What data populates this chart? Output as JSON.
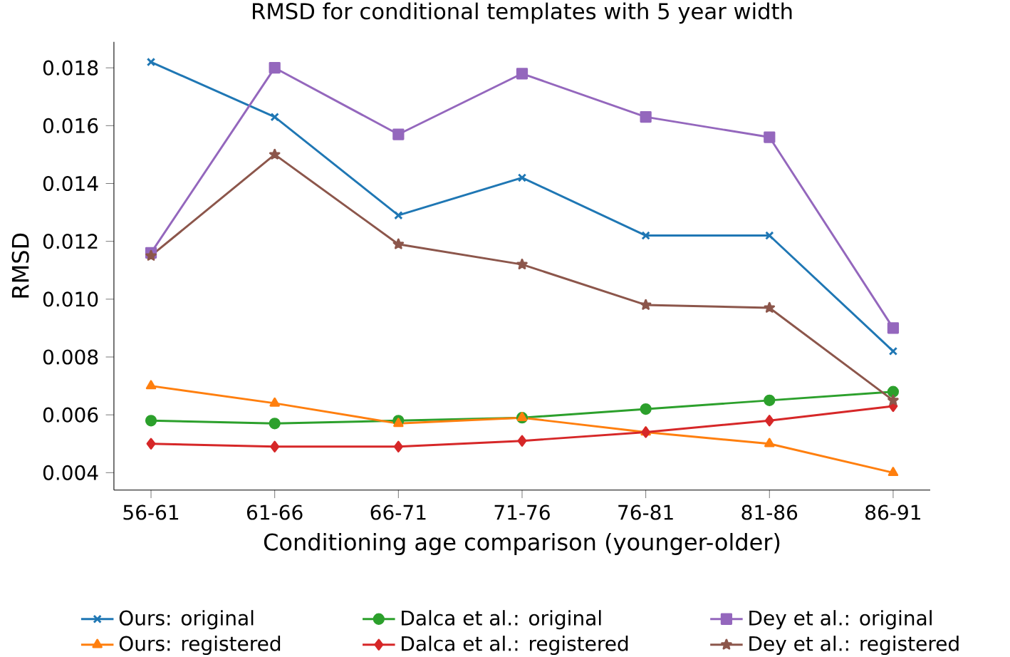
{
  "chart_data": {
    "type": "line",
    "title": "RMSD for conditional templates with 5 year width",
    "xlabel": "Conditioning age comparison (younger-older)",
    "ylabel": "RMSD",
    "categories": [
      "56-61",
      "61-66",
      "66-71",
      "71-76",
      "76-81",
      "81-86",
      "86-91"
    ],
    "ylim": [
      0.0034,
      0.0189
    ],
    "yticks": [
      {
        "value": 0.004,
        "label": "0.004"
      },
      {
        "value": 0.006,
        "label": "0.006"
      },
      {
        "value": 0.008,
        "label": "0.008"
      },
      {
        "value": 0.01,
        "label": "0.010"
      },
      {
        "value": 0.012,
        "label": "0.012"
      },
      {
        "value": 0.014,
        "label": "0.014"
      },
      {
        "value": 0.016,
        "label": "0.016"
      },
      {
        "value": 0.018,
        "label": "0.018"
      }
    ],
    "grid": false,
    "legend": "bottom",
    "line_style": "solid",
    "series": [
      {
        "name": "Ours: original",
        "color": "#1f77b4",
        "marker": "cross",
        "values": [
          0.0182,
          0.0163,
          0.0129,
          0.0142,
          0.0122,
          0.0122,
          0.0082
        ]
      },
      {
        "name": "Ours: registered",
        "color": "#ff7f0e",
        "marker": "triangle",
        "values": [
          0.007,
          0.0064,
          0.0057,
          0.0059,
          0.0054,
          0.005,
          0.004
        ]
      },
      {
        "name": "Dalca et al.: original",
        "color": "#2ca02c",
        "marker": "circle",
        "values": [
          0.0058,
          0.0057,
          0.0058,
          0.0059,
          0.0062,
          0.0065,
          0.0068
        ]
      },
      {
        "name": "Dalca et al.: registered",
        "color": "#d62728",
        "marker": "diamond",
        "values": [
          0.005,
          0.0049,
          0.0049,
          0.0051,
          0.0054,
          0.0058,
          0.0063
        ]
      },
      {
        "name": "Dey et al.: original",
        "color": "#9467bd",
        "marker": "square",
        "values": [
          0.0116,
          0.018,
          0.0157,
          0.0178,
          0.0163,
          0.0156,
          0.009
        ]
      },
      {
        "name": "Dey et al.: registered",
        "color": "#8c564b",
        "marker": "star",
        "values": [
          0.0115,
          0.015,
          0.0119,
          0.0112,
          0.0098,
          0.0097,
          0.0065
        ]
      }
    ]
  }
}
